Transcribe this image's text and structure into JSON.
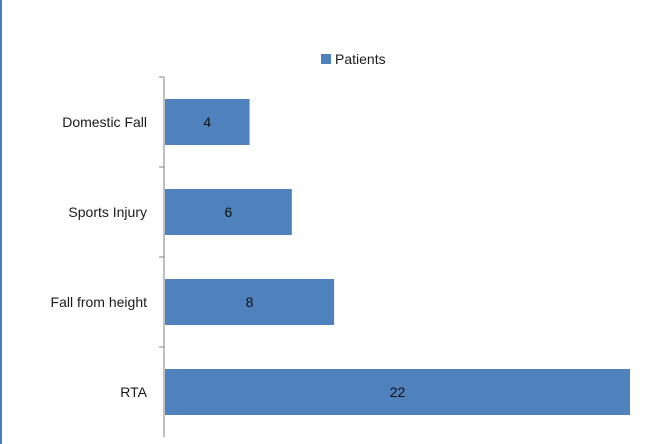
{
  "colors": {
    "bar": "#4f81bd",
    "axis": "#808080",
    "border": "#4a7ebb"
  },
  "chart_data": {
    "type": "bar",
    "orientation": "horizontal",
    "categories": [
      "Domestic Fall",
      "Sports Injury",
      "Fall from height",
      "RTA"
    ],
    "series": [
      {
        "name": "Patients",
        "values": [
          4,
          6,
          8,
          22
        ]
      }
    ],
    "legend": {
      "position": "top",
      "entries": [
        "Patients"
      ]
    },
    "data_labels": true,
    "grid": false,
    "xlim": [
      0,
      22
    ]
  }
}
